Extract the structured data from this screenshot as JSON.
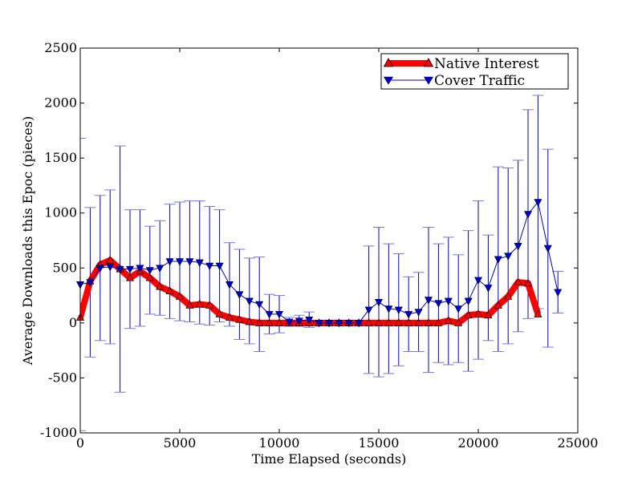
{
  "chart_data": {
    "type": "line",
    "title": "",
    "xlabel": "Time Elapsed (seconds)",
    "ylabel": "Average Downloads this Epoc (pieces)",
    "xlim": [
      0,
      25000
    ],
    "ylim": [
      -1000,
      2500
    ],
    "xticks": [
      0,
      5000,
      10000,
      15000,
      20000,
      25000
    ],
    "yticks": [
      -1000,
      -500,
      0,
      500,
      1000,
      1500,
      2000,
      2500
    ],
    "xtick_labels": [
      "0",
      "5000",
      "10000",
      "15000",
      "20000",
      "25000"
    ],
    "ytick_labels": [
      "-1000",
      "-500",
      "0",
      "500",
      "1000",
      "1500",
      "2000",
      "2500"
    ],
    "grid": false,
    "legend_position": "top-right",
    "series": [
      {
        "name": "Native Interest",
        "color": "#ff0000",
        "marker": "triangle-up",
        "x": [
          0,
          500,
          1000,
          1500,
          2000,
          2500,
          3000,
          3500,
          4000,
          4500,
          5000,
          5500,
          6000,
          6500,
          7000,
          7500,
          8000,
          8500,
          9000,
          9500,
          10000,
          10500,
          11000,
          11500,
          12000,
          12500,
          13000,
          13500,
          14000,
          14500,
          15000,
          15500,
          16000,
          16500,
          17000,
          17500,
          18000,
          18500,
          19000,
          19500,
          20000,
          20500,
          21000,
          21500,
          22000,
          22500,
          23000
        ],
        "values": [
          50,
          380,
          530,
          570,
          490,
          410,
          470,
          410,
          330,
          290,
          240,
          160,
          170,
          160,
          80,
          50,
          30,
          10,
          0,
          0,
          0,
          0,
          0,
          0,
          0,
          0,
          0,
          0,
          0,
          0,
          0,
          0,
          0,
          0,
          0,
          0,
          0,
          20,
          0,
          70,
          80,
          70,
          160,
          240,
          370,
          360,
          80
        ]
      },
      {
        "name": "Cover Traffic",
        "color": "#0000cc",
        "marker": "triangle-down",
        "x": [
          0,
          500,
          1000,
          1500,
          2000,
          2500,
          3000,
          3500,
          4000,
          4500,
          5000,
          5500,
          6000,
          6500,
          7000,
          7500,
          8000,
          8500,
          9000,
          9500,
          10000,
          10500,
          11000,
          11500,
          12000,
          12500,
          13000,
          13500,
          14000,
          14500,
          15000,
          15500,
          16000,
          16500,
          17000,
          17500,
          18000,
          18500,
          19000,
          19500,
          20000,
          20500,
          21000,
          21500,
          22000,
          22500,
          23000,
          23500,
          24000
        ],
        "values": [
          350,
          370,
          500,
          510,
          490,
          490,
          500,
          480,
          500,
          560,
          560,
          560,
          550,
          520,
          520,
          350,
          260,
          200,
          170,
          80,
          80,
          10,
          20,
          30,
          0,
          0,
          0,
          0,
          0,
          120,
          190,
          130,
          120,
          80,
          100,
          210,
          180,
          200,
          130,
          200,
          390,
          320,
          580,
          610,
          700,
          990,
          1100,
          680,
          280
        ],
        "errors": [
          1330,
          680,
          660,
          700,
          1120,
          540,
          530,
          400,
          430,
          520,
          540,
          550,
          560,
          540,
          510,
          380,
          410,
          390,
          430,
          180,
          170,
          40,
          50,
          70,
          15,
          15,
          15,
          15,
          15,
          580,
          680,
          590,
          510,
          340,
          360,
          660,
          540,
          580,
          490,
          640,
          720,
          480,
          840,
          800,
          780,
          950,
          970,
          900,
          190
        ]
      }
    ]
  }
}
